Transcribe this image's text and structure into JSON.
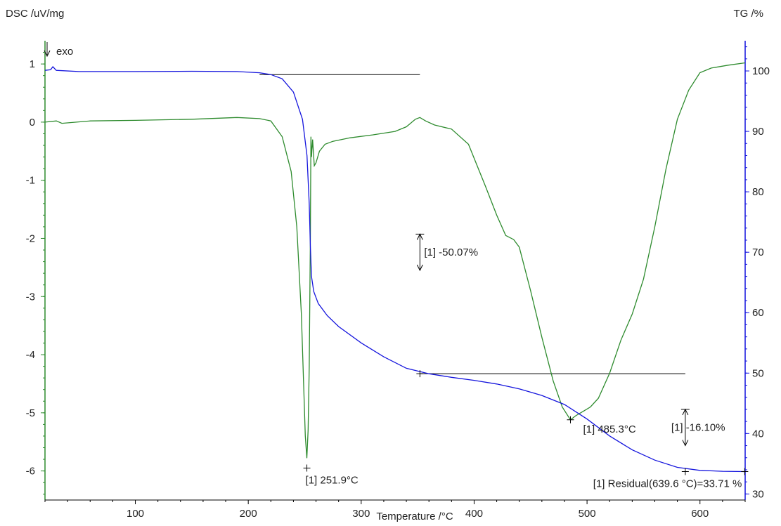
{
  "chart_data": {
    "type": "line",
    "title": "",
    "xlabel": "Temperature /°C",
    "ylabel_left": "DSC /uV/mg",
    "ylabel_right": "TG /%",
    "exo_label": "exo",
    "xlim": [
      20,
      640
    ],
    "ylim_left": [
      -6.5,
      1.4
    ],
    "ylim_right": [
      29,
      105
    ],
    "x_ticks": [
      100,
      200,
      300,
      400,
      500,
      600
    ],
    "y_left_ticks": [
      1,
      0,
      -1,
      -2,
      -3,
      -4,
      -5,
      -6
    ],
    "y_right_ticks": [
      100,
      90,
      80,
      70,
      60,
      50,
      40,
      30
    ],
    "series": [
      {
        "axis": "left",
        "color": "#2e8b2e",
        "points": [
          [
            20,
            0.0
          ],
          [
            30,
            0.02
          ],
          [
            35,
            -0.02
          ],
          [
            60,
            0.02
          ],
          [
            100,
            0.03
          ],
          [
            150,
            0.05
          ],
          [
            190,
            0.08
          ],
          [
            210,
            0.06
          ],
          [
            220,
            0.02
          ],
          [
            230,
            -0.25
          ],
          [
            238,
            -0.85
          ],
          [
            243,
            -1.8
          ],
          [
            247,
            -3.3
          ],
          [
            249,
            -4.5
          ],
          [
            250.5,
            -5.4
          ],
          [
            251.9,
            -5.78
          ],
          [
            253,
            -5.3
          ],
          [
            254,
            -4.2
          ],
          [
            255,
            -2.0
          ],
          [
            255.5,
            -0.25
          ],
          [
            256,
            -0.6
          ],
          [
            257,
            -0.3
          ],
          [
            258.5,
            -0.75
          ],
          [
            260,
            -0.7
          ],
          [
            263,
            -0.5
          ],
          [
            268,
            -0.38
          ],
          [
            275,
            -0.33
          ],
          [
            290,
            -0.27
          ],
          [
            310,
            -0.22
          ],
          [
            330,
            -0.16
          ],
          [
            340,
            -0.08
          ],
          [
            348,
            0.05
          ],
          [
            352,
            0.08
          ],
          [
            357,
            0.02
          ],
          [
            365,
            -0.05
          ],
          [
            380,
            -0.12
          ],
          [
            395,
            -0.38
          ],
          [
            410,
            -1.1
          ],
          [
            420,
            -1.6
          ],
          [
            428,
            -1.95
          ],
          [
            435,
            -2.02
          ],
          [
            440,
            -2.15
          ],
          [
            450,
            -2.9
          ],
          [
            460,
            -3.7
          ],
          [
            470,
            -4.45
          ],
          [
            478,
            -4.9
          ],
          [
            485.3,
            -5.12
          ],
          [
            490,
            -5.05
          ],
          [
            497,
            -4.97
          ],
          [
            503,
            -4.9
          ],
          [
            510,
            -4.75
          ],
          [
            520,
            -4.32
          ],
          [
            530,
            -3.75
          ],
          [
            540,
            -3.3
          ],
          [
            550,
            -2.7
          ],
          [
            560,
            -1.8
          ],
          [
            570,
            -0.8
          ],
          [
            580,
            0.05
          ],
          [
            590,
            0.55
          ],
          [
            600,
            0.85
          ],
          [
            610,
            0.93
          ],
          [
            625,
            0.98
          ],
          [
            640,
            1.02
          ]
        ]
      },
      {
        "axis": "right",
        "color": "#1515dd",
        "points": [
          [
            20,
            100.1
          ],
          [
            25,
            100.2
          ],
          [
            27,
            100.7
          ],
          [
            30,
            100.1
          ],
          [
            50,
            99.9
          ],
          [
            100,
            99.9
          ],
          [
            150,
            99.95
          ],
          [
            190,
            99.9
          ],
          [
            210,
            99.7
          ],
          [
            220,
            99.4
          ],
          [
            230,
            98.7
          ],
          [
            240,
            96.5
          ],
          [
            248,
            92.0
          ],
          [
            252,
            86.0
          ],
          [
            254,
            78.0
          ],
          [
            255,
            71.0
          ],
          [
            256,
            66.0
          ],
          [
            258,
            63.5
          ],
          [
            262,
            61.5
          ],
          [
            270,
            59.5
          ],
          [
            280,
            57.7
          ],
          [
            300,
            55.0
          ],
          [
            320,
            52.7
          ],
          [
            340,
            50.8
          ],
          [
            360,
            49.9
          ],
          [
            380,
            49.3
          ],
          [
            400,
            48.8
          ],
          [
            420,
            48.2
          ],
          [
            440,
            47.4
          ],
          [
            460,
            46.3
          ],
          [
            480,
            44.8
          ],
          [
            500,
            42.4
          ],
          [
            520,
            39.6
          ],
          [
            540,
            37.3
          ],
          [
            560,
            35.6
          ],
          [
            580,
            34.4
          ],
          [
            600,
            33.9
          ],
          [
            620,
            33.75
          ],
          [
            639.6,
            33.71
          ]
        ]
      }
    ],
    "baselines": [
      {
        "axis": "right",
        "x": [
          210,
          352
        ],
        "y": 99.4
      },
      {
        "axis": "right",
        "x": [
          352,
          587
        ],
        "y": 49.9
      }
    ],
    "annotations": [
      {
        "text": "[1] -50.07%",
        "arrow_x": 352,
        "arrow_y": [
          67,
          73
        ],
        "axis": "right"
      },
      {
        "text": "[1] -16.10%",
        "arrow_x": 587,
        "arrow_y": [
          38,
          44
        ],
        "axis": "right"
      },
      {
        "text": "[1] 251.9°C",
        "x": 251.9,
        "y": -5.95,
        "axis": "left"
      },
      {
        "text": "[1] 485.3°C",
        "x": 485.3,
        "y": -5.12,
        "axis": "left"
      },
      {
        "text": "[1] Residual(639.6 °C)=33.71 %",
        "x": 639.6,
        "y": 33.71,
        "axis": "right"
      }
    ]
  }
}
